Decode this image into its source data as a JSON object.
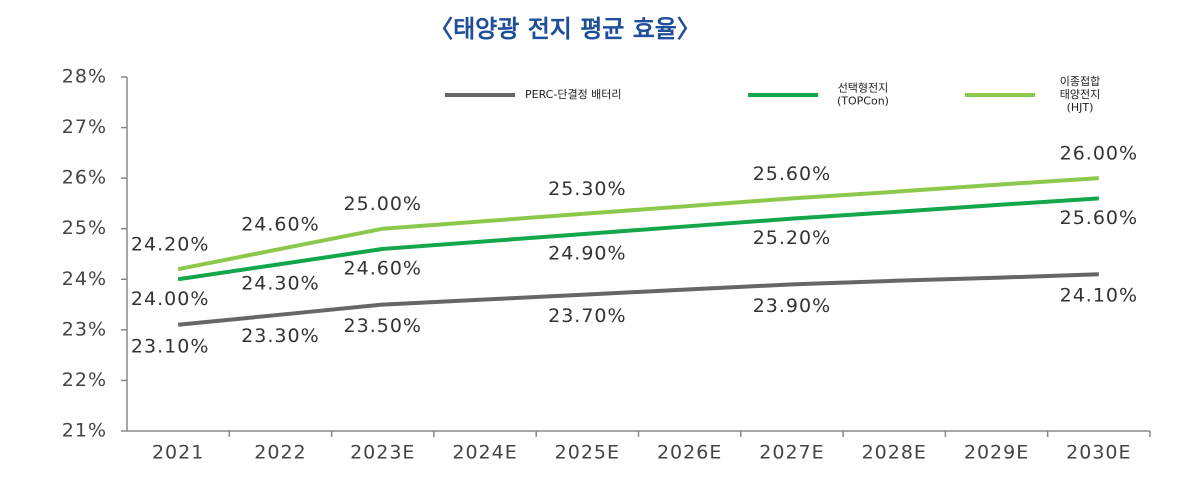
{
  "chart_data": {
    "type": "line",
    "title": "〈태양광 전지 평균 효율〉",
    "categories": [
      "2021",
      "2022",
      "2023E",
      "2024E",
      "2025E",
      "2026E",
      "2027E",
      "2028E",
      "2029E",
      "2030E"
    ],
    "series": [
      {
        "name": "PERC-단결정 배터리",
        "color": "#666666",
        "values": [
          23.1,
          23.3,
          23.5,
          23.6,
          23.7,
          23.8,
          23.9,
          23.97,
          24.03,
          24.1
        ],
        "value_labels": [
          "23.10%",
          "23.30%",
          "23.50%",
          null,
          "23.70%",
          null,
          "23.90%",
          null,
          null,
          "24.10%"
        ]
      },
      {
        "name": "선택형전지\n(TOPCon)",
        "color": "#13a64a",
        "values": [
          24.0,
          24.3,
          24.6,
          24.75,
          24.9,
          25.05,
          25.2,
          25.33,
          25.47,
          25.6
        ],
        "value_labels": [
          "24.00%",
          "24.30%",
          "24.60%",
          null,
          "24.90%",
          null,
          "25.20%",
          null,
          null,
          "25.60%"
        ]
      },
      {
        "name": "이종접합\n태양전지\n(HJT)",
        "color": "#8cc84b",
        "values": [
          24.2,
          24.6,
          25.0,
          25.15,
          25.3,
          25.45,
          25.6,
          25.73,
          25.87,
          26.0
        ],
        "value_labels": [
          "24.20%",
          "24.60%",
          "25.00%",
          null,
          "25.30%",
          null,
          "25.60%",
          null,
          null,
          "26.00%"
        ]
      }
    ],
    "ylim": [
      21,
      28
    ],
    "yticks": [
      {
        "value": 21,
        "label": "21%"
      },
      {
        "value": 22,
        "label": "22%"
      },
      {
        "value": 23,
        "label": "23%"
      },
      {
        "value": 24,
        "label": "24%"
      },
      {
        "value": 25,
        "label": "25%"
      },
      {
        "value": 26,
        "label": "26%"
      },
      {
        "value": 27,
        "label": "27%"
      },
      {
        "value": 28,
        "label": "28%"
      }
    ],
    "legend": "top",
    "grid": false
  }
}
